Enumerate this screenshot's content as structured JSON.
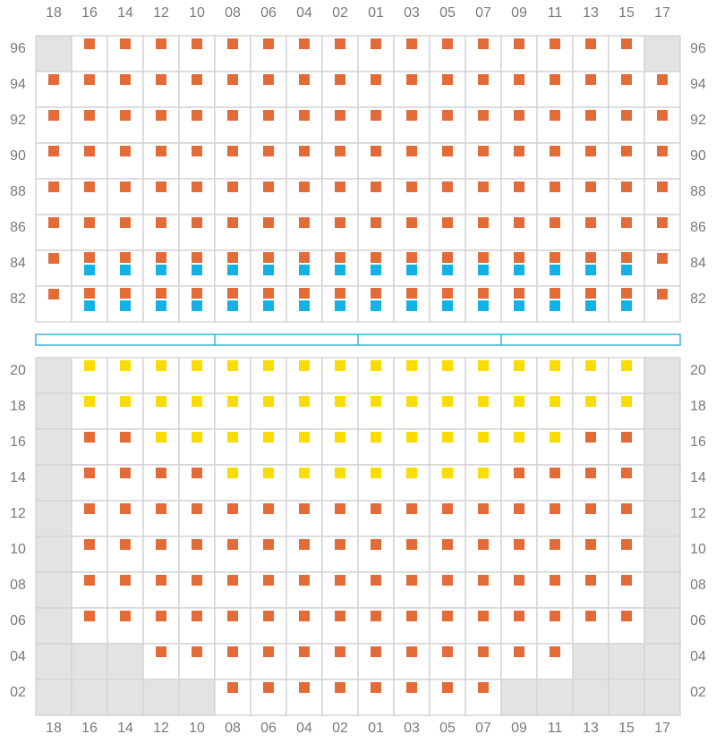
{
  "columns": [
    "18",
    "16",
    "14",
    "12",
    "10",
    "08",
    "06",
    "04",
    "02",
    "01",
    "03",
    "05",
    "07",
    "09",
    "11",
    "13",
    "15",
    "17"
  ],
  "cell_types": {
    "o": {
      "fill": "#ffffff",
      "marks": [
        "#e36b38"
      ]
    },
    "ob": {
      "fill": "#ffffff",
      "marks": [
        "#e36b38",
        "#12b2e6"
      ]
    },
    "y": {
      "fill": "#ffffff",
      "marks": [
        "#fbdc00"
      ]
    },
    "g": {
      "fill": "#e3e3e5",
      "marks": []
    }
  },
  "sections": [
    {
      "rows": [
        {
          "label": "96",
          "cells": [
            "g",
            "o",
            "o",
            "o",
            "o",
            "o",
            "o",
            "o",
            "o",
            "o",
            "o",
            "o",
            "o",
            "o",
            "o",
            "o",
            "o",
            "g"
          ]
        },
        {
          "label": "94",
          "cells": [
            "o",
            "o",
            "o",
            "o",
            "o",
            "o",
            "o",
            "o",
            "o",
            "o",
            "o",
            "o",
            "o",
            "o",
            "o",
            "o",
            "o",
            "o"
          ]
        },
        {
          "label": "92",
          "cells": [
            "o",
            "o",
            "o",
            "o",
            "o",
            "o",
            "o",
            "o",
            "o",
            "o",
            "o",
            "o",
            "o",
            "o",
            "o",
            "o",
            "o",
            "o"
          ]
        },
        {
          "label": "90",
          "cells": [
            "o",
            "o",
            "o",
            "o",
            "o",
            "o",
            "o",
            "o",
            "o",
            "o",
            "o",
            "o",
            "o",
            "o",
            "o",
            "o",
            "o",
            "o"
          ]
        },
        {
          "label": "88",
          "cells": [
            "o",
            "o",
            "o",
            "o",
            "o",
            "o",
            "o",
            "o",
            "o",
            "o",
            "o",
            "o",
            "o",
            "o",
            "o",
            "o",
            "o",
            "o"
          ]
        },
        {
          "label": "86",
          "cells": [
            "o",
            "o",
            "o",
            "o",
            "o",
            "o",
            "o",
            "o",
            "o",
            "o",
            "o",
            "o",
            "o",
            "o",
            "o",
            "o",
            "o",
            "o"
          ]
        },
        {
          "label": "84",
          "cells": [
            "o",
            "ob",
            "ob",
            "ob",
            "ob",
            "ob",
            "ob",
            "ob",
            "ob",
            "ob",
            "ob",
            "ob",
            "ob",
            "ob",
            "ob",
            "ob",
            "ob",
            "o"
          ]
        },
        {
          "label": "82",
          "cells": [
            "o",
            "ob",
            "ob",
            "ob",
            "ob",
            "ob",
            "ob",
            "ob",
            "ob",
            "ob",
            "ob",
            "ob",
            "ob",
            "ob",
            "ob",
            "ob",
            "ob",
            "o"
          ]
        }
      ]
    },
    {
      "rows": [
        {
          "label": "20",
          "cells": [
            "g",
            "y",
            "y",
            "y",
            "y",
            "y",
            "y",
            "y",
            "y",
            "y",
            "y",
            "y",
            "y",
            "y",
            "y",
            "y",
            "y",
            "g"
          ]
        },
        {
          "label": "18",
          "cells": [
            "g",
            "y",
            "y",
            "y",
            "y",
            "y",
            "y",
            "y",
            "y",
            "y",
            "y",
            "y",
            "y",
            "y",
            "y",
            "y",
            "y",
            "g"
          ]
        },
        {
          "label": "16",
          "cells": [
            "g",
            "o",
            "o",
            "y",
            "y",
            "y",
            "y",
            "y",
            "y",
            "y",
            "y",
            "y",
            "y",
            "y",
            "y",
            "o",
            "o",
            "g"
          ]
        },
        {
          "label": "14",
          "cells": [
            "g",
            "o",
            "o",
            "o",
            "o",
            "y",
            "y",
            "y",
            "y",
            "y",
            "y",
            "y",
            "y",
            "o",
            "o",
            "o",
            "o",
            "g"
          ]
        },
        {
          "label": "12",
          "cells": [
            "g",
            "o",
            "o",
            "o",
            "o",
            "o",
            "o",
            "o",
            "o",
            "o",
            "o",
            "o",
            "o",
            "o",
            "o",
            "o",
            "o",
            "g"
          ]
        },
        {
          "label": "10",
          "cells": [
            "g",
            "o",
            "o",
            "o",
            "o",
            "o",
            "o",
            "o",
            "o",
            "o",
            "o",
            "o",
            "o",
            "o",
            "o",
            "o",
            "o",
            "g"
          ]
        },
        {
          "label": "08",
          "cells": [
            "g",
            "o",
            "o",
            "o",
            "o",
            "o",
            "o",
            "o",
            "o",
            "o",
            "o",
            "o",
            "o",
            "o",
            "o",
            "o",
            "o",
            "g"
          ]
        },
        {
          "label": "06",
          "cells": [
            "g",
            "o",
            "o",
            "o",
            "o",
            "o",
            "o",
            "o",
            "o",
            "o",
            "o",
            "o",
            "o",
            "o",
            "o",
            "o",
            "o",
            "g"
          ]
        },
        {
          "label": "04",
          "cells": [
            "g",
            "g",
            "g",
            "o",
            "o",
            "o",
            "o",
            "o",
            "o",
            "o",
            "o",
            "o",
            "o",
            "o",
            "o",
            "g",
            "g",
            "g"
          ]
        },
        {
          "label": "02",
          "cells": [
            "g",
            "g",
            "g",
            "g",
            "g",
            "o",
            "o",
            "o",
            "o",
            "o",
            "o",
            "o",
            "o",
            "g",
            "g",
            "g",
            "g",
            "g"
          ]
        }
      ]
    }
  ]
}
